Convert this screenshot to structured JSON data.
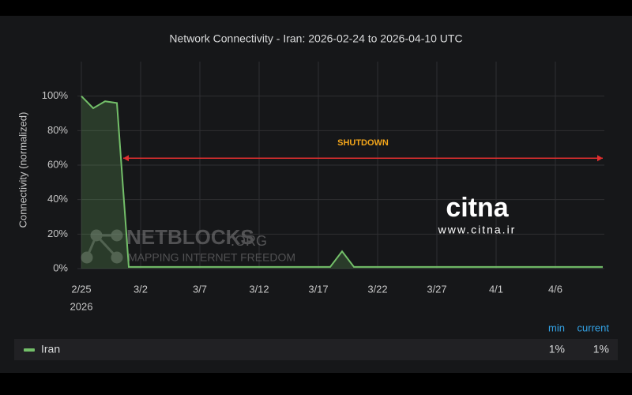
{
  "chart_data": {
    "type": "line",
    "title": "Network Connectivity - Iran: 2026-02-24 to 2026-04-10 UTC",
    "y_label": "Connectivity (normalized)",
    "x": [
      "2026-02-25",
      "2026-02-26",
      "2026-02-27",
      "2026-02-28",
      "2026-03-01",
      "2026-03-02",
      "2026-03-03",
      "2026-03-04",
      "2026-03-05",
      "2026-03-06",
      "2026-03-07",
      "2026-03-08",
      "2026-03-09",
      "2026-03-10",
      "2026-03-11",
      "2026-03-12",
      "2026-03-13",
      "2026-03-14",
      "2026-03-15",
      "2026-03-16",
      "2026-03-17",
      "2026-03-18",
      "2026-03-19",
      "2026-03-20",
      "2026-03-21",
      "2026-03-22",
      "2026-03-23",
      "2026-03-24",
      "2026-03-25",
      "2026-03-26",
      "2026-03-27",
      "2026-03-28",
      "2026-03-29",
      "2026-03-30",
      "2026-03-31",
      "2026-04-01",
      "2026-04-02",
      "2026-04-03",
      "2026-04-04",
      "2026-04-05",
      "2026-04-06",
      "2026-04-07",
      "2026-04-08",
      "2026-04-09",
      "2026-04-10"
    ],
    "series": [
      {
        "name": "Iran",
        "color": "#73bf69",
        "values": [
          100,
          93,
          97,
          96,
          1,
          1,
          1,
          1,
          1,
          1,
          1,
          1,
          1,
          1,
          1,
          1,
          1,
          1,
          1,
          1,
          1,
          1,
          10,
          1,
          1,
          1,
          1,
          1,
          1,
          1,
          1,
          1,
          1,
          1,
          1,
          1,
          1,
          1,
          1,
          1,
          1,
          1,
          1,
          1,
          1
        ]
      }
    ],
    "xlim": [
      "2026-02-25",
      "2026-04-10"
    ],
    "xticks": [
      {
        "value": "2026-02-25",
        "label": "2/25"
      },
      {
        "value": "2026-03-02",
        "label": "3/2"
      },
      {
        "value": "2026-03-07",
        "label": "3/7"
      },
      {
        "value": "2026-03-12",
        "label": "3/12"
      },
      {
        "value": "2026-03-17",
        "label": "3/17"
      },
      {
        "value": "2026-03-22",
        "label": "3/22"
      },
      {
        "value": "2026-03-27",
        "label": "3/27"
      },
      {
        "value": "2026-04-01",
        "label": "4/1"
      },
      {
        "value": "2026-04-06",
        "label": "4/6"
      }
    ],
    "x_year_label": "2026",
    "ylim": [
      0,
      120
    ],
    "yticks": [
      {
        "value": 0,
        "label": "0%"
      },
      {
        "value": 20,
        "label": "20%"
      },
      {
        "value": 40,
        "label": "40%"
      },
      {
        "value": 60,
        "label": "60%"
      },
      {
        "value": 80,
        "label": "80%"
      },
      {
        "value": 100,
        "label": "100%"
      }
    ],
    "grid": true,
    "annotation": {
      "text": "SHUTDOWN",
      "from": "2026-02-28",
      "to": "2026-04-10",
      "y": 64,
      "color": "#e02f2f"
    },
    "legend_stats": {
      "headers": [
        "min",
        "current"
      ],
      "values": [
        1,
        1
      ],
      "value_labels": [
        "1%",
        "1%"
      ]
    },
    "watermarks": {
      "netblocks": "NETBLOCKS",
      "netblocks_suffix": ".ORG",
      "netblocks_tagline": "MAPPING INTERNET FREEDOM",
      "citna": "citna",
      "citna_url": "www.citna.ir"
    }
  }
}
